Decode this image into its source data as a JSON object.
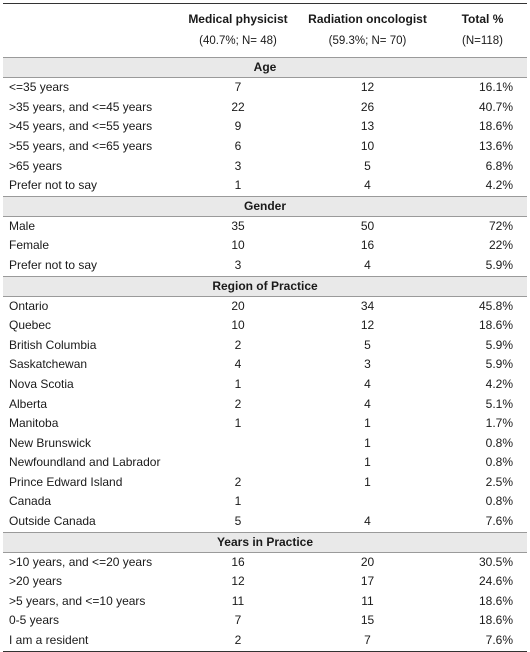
{
  "header": {
    "col2_title": "Medical physicist",
    "col2_sub": "(40.7%; N= 48)",
    "col3_title": "Radiation oncologist",
    "col3_sub": "(59.3%; N= 70)",
    "col4_title": "Total %",
    "col4_sub": "(N=118)"
  },
  "sections": [
    {
      "title": "Age",
      "rows": [
        {
          "label": "<=35 years",
          "mp": "7",
          "ro": "12",
          "total": "16.1%"
        },
        {
          "label": ">35 years, and <=45 years",
          "mp": "22",
          "ro": "26",
          "total": "40.7%"
        },
        {
          "label": ">45 years, and <=55 years",
          "mp": "9",
          "ro": "13",
          "total": "18.6%"
        },
        {
          "label": ">55 years, and <=65 years",
          "mp": "6",
          "ro": "10",
          "total": "13.6%"
        },
        {
          "label": ">65 years",
          "mp": "3",
          "ro": "5",
          "total": "6.8%"
        },
        {
          "label": "Prefer not to say",
          "mp": "1",
          "ro": "4",
          "total": "4.2%"
        }
      ]
    },
    {
      "title": "Gender",
      "rows": [
        {
          "label": "Male",
          "mp": "35",
          "ro": "50",
          "total": "72%"
        },
        {
          "label": "Female",
          "mp": "10",
          "ro": "16",
          "total": "22%"
        },
        {
          "label": "Prefer not to say",
          "mp": "3",
          "ro": "4",
          "total": "5.9%"
        }
      ]
    },
    {
      "title": "Region of Practice",
      "rows": [
        {
          "label": "Ontario",
          "mp": "20",
          "ro": "34",
          "total": "45.8%"
        },
        {
          "label": "Quebec",
          "mp": "10",
          "ro": "12",
          "total": "18.6%"
        },
        {
          "label": "British Columbia",
          "mp": "2",
          "ro": "5",
          "total": "5.9%"
        },
        {
          "label": "Saskatchewan",
          "mp": "4",
          "ro": "3",
          "total": "5.9%"
        },
        {
          "label": "Nova Scotia",
          "mp": "1",
          "ro": "4",
          "total": "4.2%"
        },
        {
          "label": "Alberta",
          "mp": "2",
          "ro": "4",
          "total": "5.1%"
        },
        {
          "label": "Manitoba",
          "mp": "1",
          "ro": "1",
          "total": "1.7%"
        },
        {
          "label": "New Brunswick",
          "mp": "",
          "ro": "1",
          "total": "0.8%"
        },
        {
          "label": "Newfoundland and Labrador",
          "mp": "",
          "ro": "1",
          "total": "0.8%"
        },
        {
          "label": "Prince Edward Island",
          "mp": "2",
          "ro": "1",
          "total": "2.5%"
        },
        {
          "label": "Canada",
          "mp": "1",
          "ro": "",
          "total": "0.8%"
        },
        {
          "label": "Outside Canada",
          "mp": "5",
          "ro": "4",
          "total": "7.6%"
        }
      ]
    },
    {
      "title": "Years in Practice",
      "rows": [
        {
          "label": ">10 years, and <=20 years",
          "mp": "16",
          "ro": "20",
          "total": "30.5%"
        },
        {
          "label": ">20 years",
          "mp": "12",
          "ro": "17",
          "total": "24.6%"
        },
        {
          "label": ">5 years, and <=10 years",
          "mp": "11",
          "ro": "11",
          "total": "18.6%"
        },
        {
          "label": "0-5 years",
          "mp": "7",
          "ro": "15",
          "total": "18.6%"
        },
        {
          "label": "I am a resident",
          "mp": "2",
          "ro": "7",
          "total": "7.6%"
        }
      ]
    }
  ]
}
